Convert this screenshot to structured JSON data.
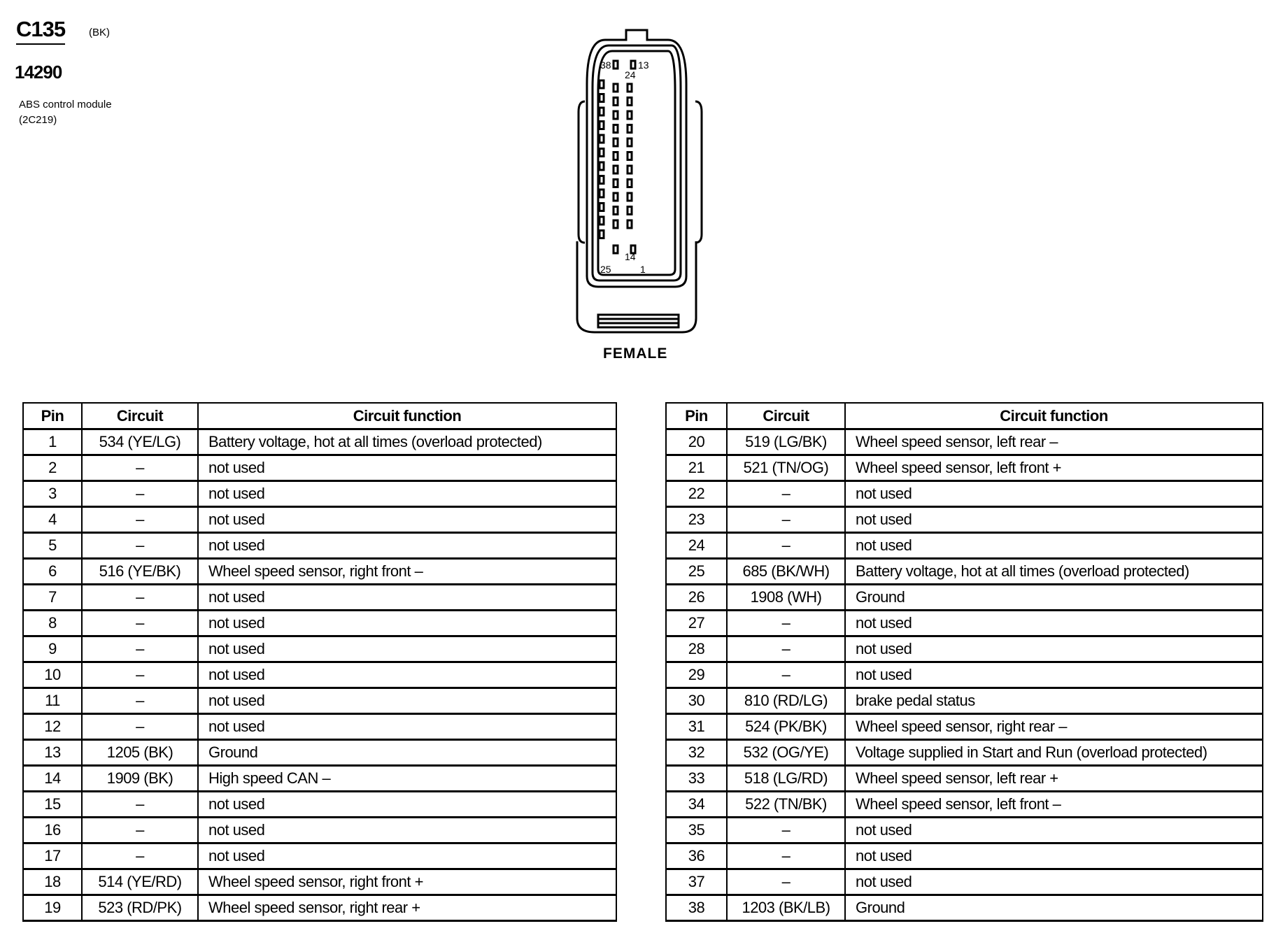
{
  "connector": {
    "id": "C135",
    "color": "(BK)",
    "part_number": "14290",
    "description": "ABS control module",
    "description_code": "(2C219)",
    "gender": "FEMALE",
    "pin_labels": {
      "top_left": "38",
      "top_right": "13",
      "mid_top": "24",
      "mid_bottom": "14",
      "bottom_left": "25",
      "bottom_right": "1"
    }
  },
  "headers": {
    "pin": "Pin",
    "circuit": "Circuit",
    "function": "Circuit function"
  },
  "left_rows": [
    {
      "pin": "1",
      "circuit": "534 (YE/LG)",
      "function": "Battery voltage, hot at all times (overload protected)"
    },
    {
      "pin": "2",
      "circuit": "–",
      "function": "not used"
    },
    {
      "pin": "3",
      "circuit": "–",
      "function": "not used"
    },
    {
      "pin": "4",
      "circuit": "–",
      "function": "not used"
    },
    {
      "pin": "5",
      "circuit": "–",
      "function": "not used"
    },
    {
      "pin": "6",
      "circuit": "516 (YE/BK)",
      "function": "Wheel speed sensor, right front  –"
    },
    {
      "pin": "7",
      "circuit": "–",
      "function": "not used"
    },
    {
      "pin": "8",
      "circuit": "–",
      "function": "not used"
    },
    {
      "pin": "9",
      "circuit": "–",
      "function": "not used"
    },
    {
      "pin": "10",
      "circuit": "–",
      "function": "not used"
    },
    {
      "pin": "11",
      "circuit": "–",
      "function": "not used"
    },
    {
      "pin": "12",
      "circuit": "–",
      "function": "not used"
    },
    {
      "pin": "13",
      "circuit": "1205 (BK)",
      "function": "Ground"
    },
    {
      "pin": "14",
      "circuit": "1909 (BK)",
      "function": "High speed CAN –"
    },
    {
      "pin": "15",
      "circuit": "–",
      "function": "not used"
    },
    {
      "pin": "16",
      "circuit": "–",
      "function": "not used"
    },
    {
      "pin": "17",
      "circuit": "–",
      "function": "not used"
    },
    {
      "pin": "18",
      "circuit": "514 (YE/RD)",
      "function": "Wheel speed sensor, right front  +"
    },
    {
      "pin": "19",
      "circuit": "523 (RD/PK)",
      "function": "Wheel speed sensor, right rear +"
    }
  ],
  "right_rows": [
    {
      "pin": "20",
      "circuit": "519 (LG/BK)",
      "function": "Wheel speed sensor, left rear –"
    },
    {
      "pin": "21",
      "circuit": "521 (TN/OG)",
      "function": "Wheel speed sensor, left front  +"
    },
    {
      "pin": "22",
      "circuit": "–",
      "function": "not used"
    },
    {
      "pin": "23",
      "circuit": "–",
      "function": "not used"
    },
    {
      "pin": "24",
      "circuit": "–",
      "function": "not used"
    },
    {
      "pin": "25",
      "circuit": "685 (BK/WH)",
      "function": "Battery voltage, hot at all times (overload protected)"
    },
    {
      "pin": "26",
      "circuit": "1908 (WH)",
      "function": "Ground"
    },
    {
      "pin": "27",
      "circuit": "–",
      "function": "not used"
    },
    {
      "pin": "28",
      "circuit": "–",
      "function": "not used"
    },
    {
      "pin": "29",
      "circuit": "–",
      "function": "not used"
    },
    {
      "pin": "30",
      "circuit": "810 (RD/LG)",
      "function": "brake pedal status"
    },
    {
      "pin": "31",
      "circuit": "524 (PK/BK)",
      "function": "Wheel speed sensor, right rear –"
    },
    {
      "pin": "32",
      "circuit": "532 (OG/YE)",
      "function": "Voltage supplied in Start and Run (overload protected)"
    },
    {
      "pin": "33",
      "circuit": "518 (LG/RD)",
      "function": "Wheel speed sensor, left rear +"
    },
    {
      "pin": "34",
      "circuit": "522 (TN/BK)",
      "function": "Wheel speed sensor, left front  –"
    },
    {
      "pin": "35",
      "circuit": "–",
      "function": "not used"
    },
    {
      "pin": "36",
      "circuit": "–",
      "function": "not used"
    },
    {
      "pin": "37",
      "circuit": "–",
      "function": "not used"
    },
    {
      "pin": "38",
      "circuit": "1203 (BK/LB)",
      "function": "Ground"
    }
  ]
}
